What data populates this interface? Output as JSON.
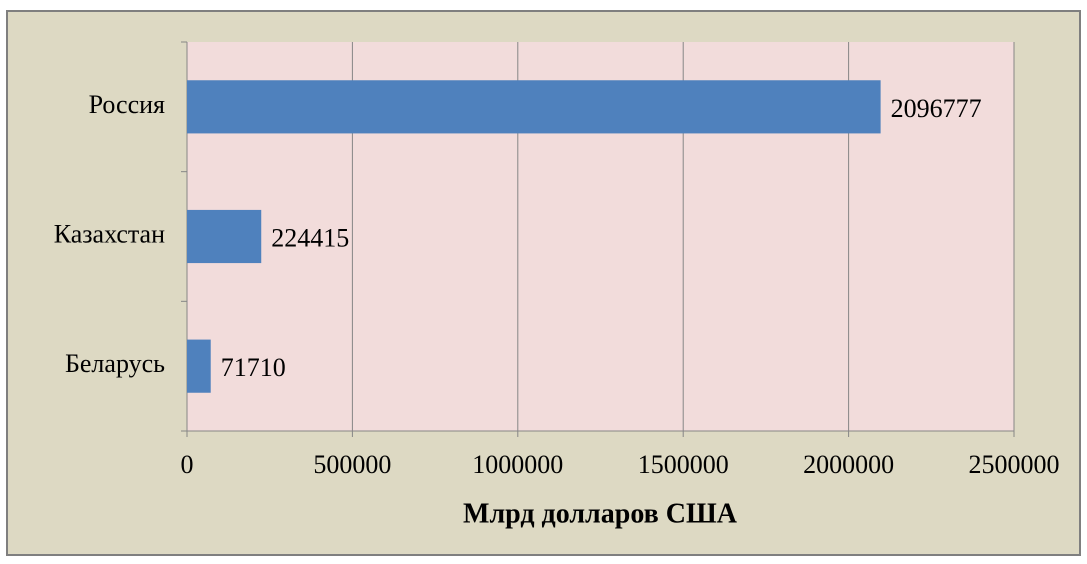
{
  "chart_data": {
    "type": "hbar",
    "x_label": "Млрд долларов США",
    "categories": [
      "Россия",
      "Казахстан",
      "Беларусь"
    ],
    "values": [
      2096777,
      224415,
      71710
    ],
    "color": "#4f81bd",
    "xlim": [
      0,
      2500000
    ],
    "xticks": [
      0,
      500000,
      1000000,
      1500000,
      2000000,
      2500000
    ],
    "grid": true
  }
}
